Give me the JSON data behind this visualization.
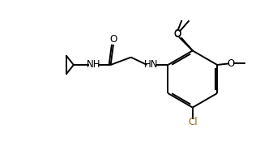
{
  "bg_color": "#ffffff",
  "line_color": "#000000",
  "text_color": "#000000",
  "cl_color": "#8B6914",
  "bond_lw": 1.4,
  "font_size": 8.5,
  "figsize": [
    3.42,
    1.85
  ],
  "dpi": 100,
  "xlim": [
    0,
    10.0
  ],
  "ylim": [
    0,
    5.5
  ]
}
